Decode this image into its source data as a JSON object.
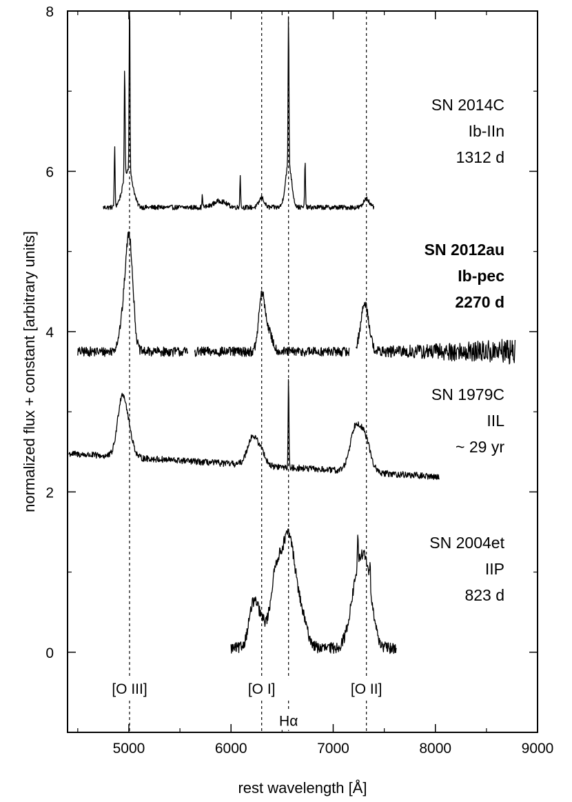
{
  "chart_data": {
    "type": "line",
    "title": "",
    "xlabel": "rest wavelength [Å]",
    "ylabel": "normalized flux + constant [arbitrary units]",
    "xlim": [
      4400,
      9000
    ],
    "ylim": [
      -1,
      8
    ],
    "xticks": [
      5000,
      6000,
      7000,
      8000,
      9000
    ],
    "yticks": [
      0,
      2,
      4,
      6,
      8
    ],
    "grid": false,
    "legend": "none",
    "line_color": "#000000",
    "reference_lines": [
      {
        "label": "[O III]",
        "x": 5007
      },
      {
        "label": "[O I]",
        "x": 6300
      },
      {
        "label": "Hα",
        "x": 6563
      },
      {
        "label": "[O II]",
        "x": 7325
      }
    ],
    "series": [
      {
        "name": "SN 2014C",
        "label_lines": [
          "SN 2014C",
          "Ib-IIn",
          "1312 d"
        ],
        "bold": false,
        "x_range": [
          4750,
          7400
        ],
        "baseline": 5.55,
        "noise": 0.03,
        "slope": 0,
        "gaps": [],
        "features": [
          {
            "x": 4959,
            "amp": 0.2,
            "w": 40
          },
          {
            "x": 5007,
            "amp": 0.35,
            "w": 40
          },
          {
            "x": 5890,
            "amp": 0.08,
            "w": 60
          },
          {
            "x": 6300,
            "amp": 0.12,
            "w": 25
          },
          {
            "x": 6563,
            "amp": 0.55,
            "w": 30
          },
          {
            "x": 7325,
            "amp": 0.12,
            "w": 25
          }
        ],
        "spikes": [
          {
            "x": 4861,
            "amp": 0.75
          },
          {
            "x": 4959,
            "amp": 1.4
          },
          {
            "x": 5007,
            "amp": 2.5
          },
          {
            "x": 5720,
            "amp": 0.15
          },
          {
            "x": 6090,
            "amp": 0.4
          },
          {
            "x": 6563,
            "amp": 1.9
          },
          {
            "x": 6725,
            "amp": 0.6
          }
        ]
      },
      {
        "name": "SN 2012au",
        "label_lines": [
          "SN 2012au",
          "Ib-pec",
          "2270 d"
        ],
        "bold": true,
        "x_range": [
          4500,
          8780
        ],
        "baseline": 3.75,
        "noise": 0.06,
        "slope": 0,
        "noise_grow": 0.25,
        "gaps": [
          [
            5580,
            5640
          ],
          [
            7160,
            7220
          ]
        ],
        "features": [
          {
            "x": 4959,
            "amp": 0.45,
            "w": 45
          },
          {
            "x": 5007,
            "amp": 1.2,
            "w": 35
          },
          {
            "x": 6300,
            "amp": 0.65,
            "w": 30
          },
          {
            "x": 6363,
            "amp": 0.25,
            "w": 40
          },
          {
            "x": 7310,
            "amp": 0.6,
            "w": 40
          }
        ],
        "spikes": []
      },
      {
        "name": "SN 1979C",
        "label_lines": [
          "SN 1979C",
          "IIL",
          "~ 29 yr"
        ],
        "bold": false,
        "x_range": [
          4410,
          8040
        ],
        "baseline": 2.35,
        "noise": 0.04,
        "slope": -8e-05,
        "gaps": [],
        "features": [
          {
            "x": 4935,
            "amp": 0.75,
            "w": 45
          },
          {
            "x": 5010,
            "amp": 0.2,
            "w": 40
          },
          {
            "x": 6210,
            "amp": 0.35,
            "w": 50
          },
          {
            "x": 6300,
            "amp": 0.15,
            "w": 40
          },
          {
            "x": 7220,
            "amp": 0.55,
            "w": 55
          },
          {
            "x": 7320,
            "amp": 0.35,
            "w": 50
          }
        ],
        "spikes": [
          {
            "x": 6563,
            "amp": 1.1
          }
        ]
      },
      {
        "name": "SN 2004et",
        "label_lines": [
          "SN 2004et",
          "IIP",
          "823 d"
        ],
        "bold": false,
        "x_range": [
          6000,
          7620
        ],
        "baseline": 0.05,
        "noise": 0.07,
        "slope": 0,
        "gaps": [],
        "features": [
          {
            "x": 6220,
            "amp": 0.55,
            "w": 45
          },
          {
            "x": 6300,
            "amp": 0.25,
            "w": 40
          },
          {
            "x": 6440,
            "amp": 0.9,
            "w": 55
          },
          {
            "x": 6563,
            "amp": 1.3,
            "w": 60
          },
          {
            "x": 6680,
            "amp": 0.4,
            "w": 60
          },
          {
            "x": 7240,
            "amp": 0.8,
            "w": 70
          },
          {
            "x": 7330,
            "amp": 0.7,
            "w": 60
          }
        ],
        "spikes": [
          {
            "x": 7240,
            "amp": 0.4
          },
          {
            "x": 7360,
            "amp": 0.3
          }
        ]
      }
    ]
  }
}
